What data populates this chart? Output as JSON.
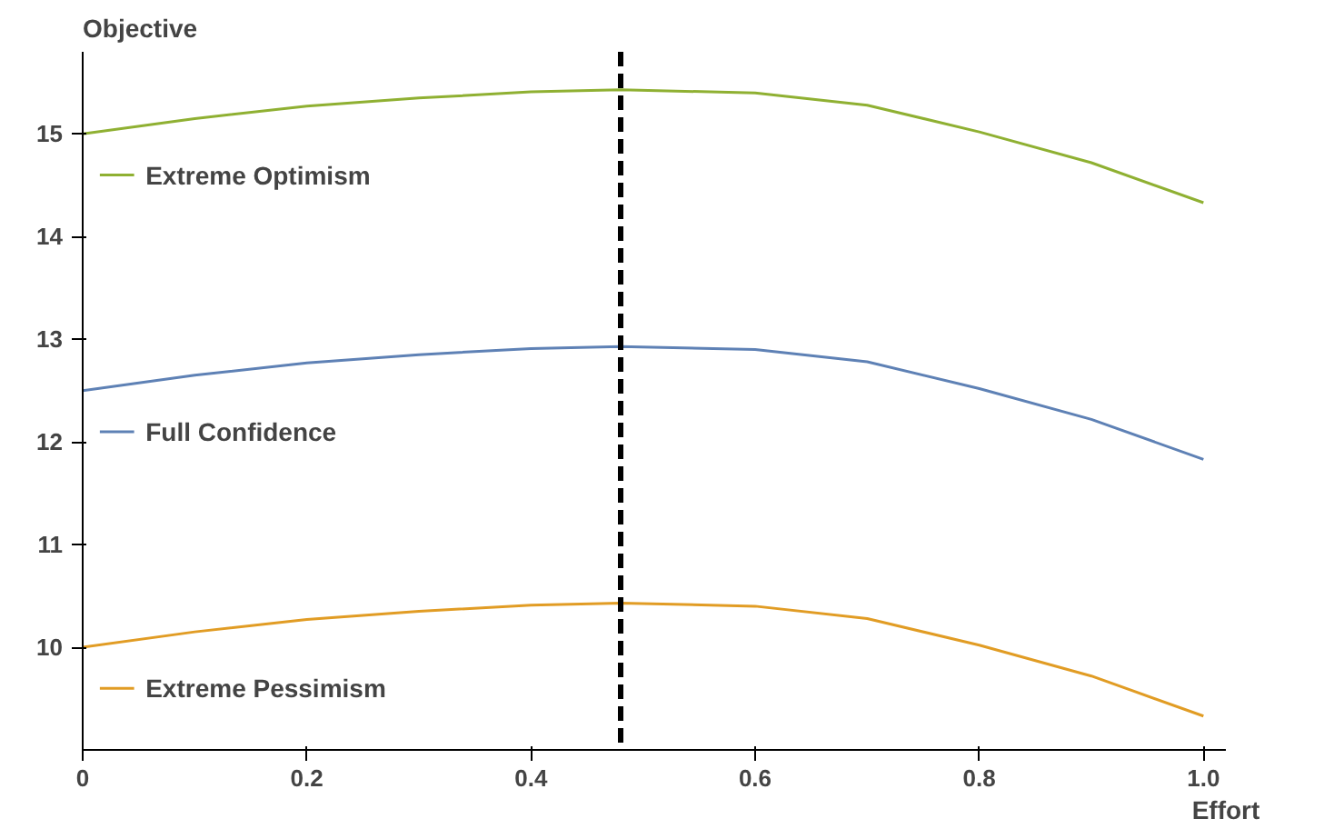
{
  "chart_data": {
    "type": "line",
    "xlabel": "Effort",
    "ylabel": "Objective",
    "x": [
      0,
      0.1,
      0.2,
      0.3,
      0.4,
      0.48,
      0.6,
      0.7,
      0.8,
      0.9,
      1.0
    ],
    "series": [
      {
        "name": "Extreme Optimism",
        "color": "#8fb032",
        "values": [
          15.0,
          15.15,
          15.27,
          15.35,
          15.41,
          15.43,
          15.4,
          15.28,
          15.02,
          14.72,
          14.33
        ]
      },
      {
        "name": "Full Confidence",
        "color": "#5e81b5",
        "values": [
          12.5,
          12.65,
          12.77,
          12.85,
          12.91,
          12.93,
          12.9,
          12.78,
          12.52,
          12.22,
          11.83
        ]
      },
      {
        "name": "Extreme Pessimism",
        "color": "#e19c24",
        "values": [
          10.0,
          10.15,
          10.27,
          10.35,
          10.41,
          10.43,
          10.4,
          10.28,
          10.02,
          9.72,
          9.33
        ]
      }
    ],
    "xlim": [
      0,
      1.02
    ],
    "ylim": [
      9.0,
      15.8
    ],
    "xticks": [
      0,
      {
        "value": 0.2,
        "label": "0.2"
      },
      {
        "value": 0.4,
        "label": "0.4"
      },
      {
        "value": 0.6,
        "label": "0.6"
      },
      {
        "value": 0.8,
        "label": "0.8"
      },
      {
        "value": 1.0,
        "label": "1.0"
      }
    ],
    "yticks": [
      10,
      11,
      12,
      13,
      14,
      15
    ],
    "ref_lines": [
      {
        "axis": "x",
        "value": 0.48,
        "color": "#000000",
        "line_style": "dashed"
      }
    ],
    "legend": "left",
    "grid": false,
    "marker": "none",
    "line_style": "solid"
  }
}
